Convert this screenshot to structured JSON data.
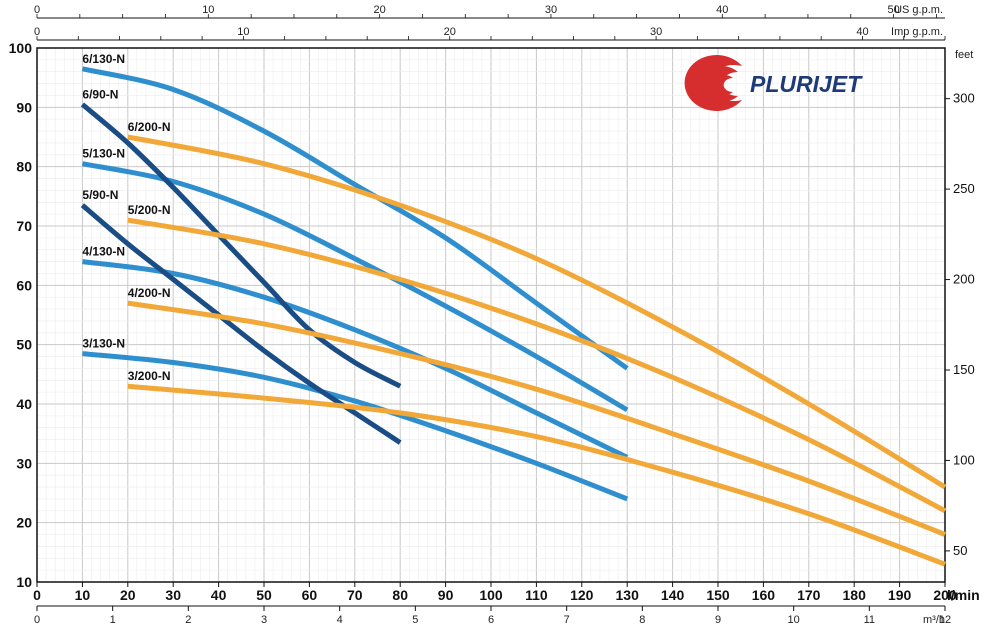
{
  "chart_data": {
    "type": "line",
    "axes": {
      "x_flow": {
        "unit": "l/min",
        "range": [
          0,
          200
        ],
        "ticks": [
          0,
          10,
          20,
          30,
          40,
          50,
          60,
          70,
          80,
          90,
          100,
          110,
          120,
          130,
          140,
          150,
          160,
          170,
          180,
          190,
          200
        ]
      },
      "x_m3h": {
        "unit": "m³/h",
        "range": [
          0,
          12
        ],
        "ticks": [
          0,
          1,
          2,
          3,
          4,
          5,
          6,
          7,
          8,
          9,
          10,
          11,
          12
        ]
      },
      "x_imp": {
        "unit": "Imp g.p.m.",
        "range": [
          0,
          44
        ],
        "ticks": [
          0,
          10,
          20,
          30,
          40
        ]
      },
      "x_us": {
        "unit": "US g.p.m.",
        "range": [
          0,
          53
        ],
        "ticks": [
          0,
          10,
          20,
          30,
          40,
          50
        ]
      },
      "y_m": {
        "unit": "m",
        "range": [
          10,
          100
        ],
        "ticks": [
          10,
          20,
          30,
          40,
          50,
          60,
          70,
          80,
          90,
          100
        ]
      },
      "y_feet": {
        "unit": "feet",
        "range": [
          32.8,
          328
        ],
        "ticks": [
          50,
          100,
          150,
          200,
          250,
          300
        ]
      }
    },
    "grid": true,
    "series": [
      {
        "name": "6/130-N",
        "color": "#2f8fce",
        "x": [
          10,
          30,
          50,
          70,
          90,
          110,
          130
        ],
        "y": [
          96.5,
          93,
          86,
          77,
          68,
          57,
          46
        ]
      },
      {
        "name": "5/130-N",
        "color": "#2f8fce",
        "x": [
          10,
          30,
          50,
          70,
          90,
          110,
          130
        ],
        "y": [
          80.5,
          77.5,
          72,
          64.5,
          56.5,
          48,
          39
        ]
      },
      {
        "name": "4/130-N",
        "color": "#2f8fce",
        "x": [
          10,
          30,
          50,
          70,
          90,
          110,
          130
        ],
        "y": [
          64,
          62,
          58,
          52.5,
          46,
          38.5,
          31
        ]
      },
      {
        "name": "3/130-N",
        "color": "#2f8fce",
        "x": [
          10,
          30,
          50,
          70,
          90,
          110,
          130
        ],
        "y": [
          48.5,
          47,
          44.5,
          40.5,
          35.5,
          30,
          24
        ]
      },
      {
        "name": "6/90-N",
        "color": "#1a4d85",
        "x": [
          10,
          20,
          30,
          40,
          50,
          60,
          70,
          80
        ],
        "y": [
          90.5,
          84,
          76.5,
          68.5,
          60.5,
          52.5,
          47,
          43
        ]
      },
      {
        "name": "5/90-N",
        "color": "#1a4d85",
        "x": [
          10,
          20,
          30,
          40,
          50,
          60,
          70,
          80
        ],
        "y": [
          73.5,
          67,
          61,
          55,
          49,
          43.5,
          38.5,
          33.5
        ]
      },
      {
        "name": "6/200-N",
        "color": "#f2a838",
        "x": [
          20,
          50,
          80,
          110,
          140,
          170,
          200
        ],
        "y": [
          85,
          80.5,
          73.5,
          64.5,
          53,
          40,
          26
        ]
      },
      {
        "name": "5/200-N",
        "color": "#f2a838",
        "x": [
          20,
          50,
          80,
          110,
          140,
          170,
          200
        ],
        "y": [
          71,
          67,
          61,
          53.5,
          44.5,
          34,
          22
        ]
      },
      {
        "name": "4/200-N",
        "color": "#f2a838",
        "x": [
          20,
          50,
          80,
          110,
          140,
          170,
          200
        ],
        "y": [
          57,
          53.5,
          48.5,
          42.5,
          35,
          27,
          18
        ]
      },
      {
        "name": "3/200-N",
        "color": "#f2a838",
        "x": [
          20,
          50,
          80,
          110,
          140,
          170,
          200
        ],
        "y": [
          43,
          41,
          38.5,
          34.5,
          28.5,
          21.5,
          13
        ]
      }
    ]
  },
  "logo": {
    "text": "PLURIJET",
    "colors": {
      "swoosh": "#d62e2e",
      "text": "#1f3a7a"
    }
  }
}
